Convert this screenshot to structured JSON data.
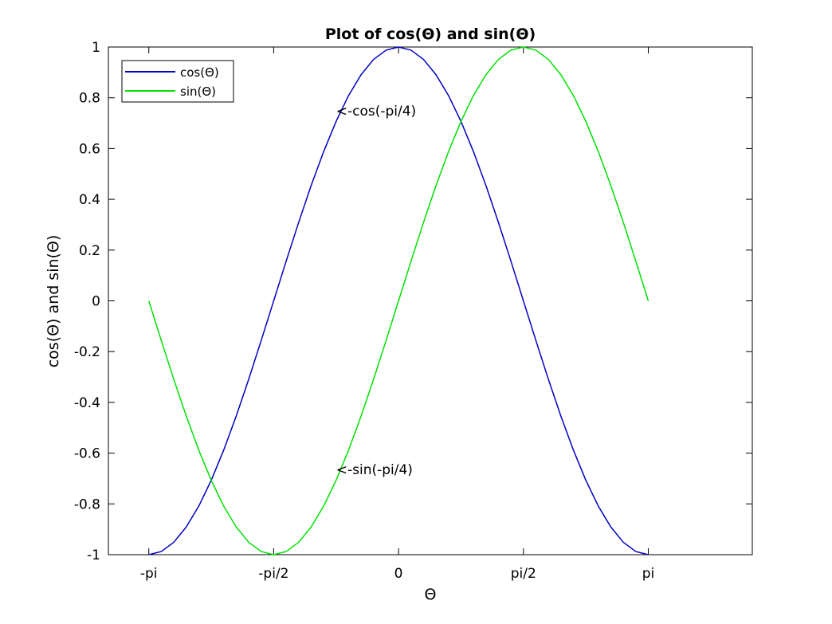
{
  "chart_data": {
    "type": "line",
    "title": "Plot of cos(Θ) and sin(Θ)",
    "xlabel": "Θ",
    "ylabel": "cos(Θ) and sin(Θ)",
    "xlim": [
      -3.65,
      4.45
    ],
    "ylim": [
      -1,
      1
    ],
    "x_ticks": [
      {
        "value": -3.14159,
        "label": "-pi"
      },
      {
        "value": -1.5708,
        "label": "-pi/2"
      },
      {
        "value": 0,
        "label": "0"
      },
      {
        "value": 1.5708,
        "label": "pi/2"
      },
      {
        "value": 3.14159,
        "label": "pi"
      }
    ],
    "y_ticks": [
      {
        "value": -1,
        "label": "-1"
      },
      {
        "value": -0.8,
        "label": "-0.8"
      },
      {
        "value": -0.6,
        "label": "-0.6"
      },
      {
        "value": -0.4,
        "label": "-0.4"
      },
      {
        "value": -0.2,
        "label": "-0.2"
      },
      {
        "value": 0,
        "label": "0"
      },
      {
        "value": 0.2,
        "label": "0.2"
      },
      {
        "value": 0.4,
        "label": "0.4"
      },
      {
        "value": 0.6,
        "label": "0.6"
      },
      {
        "value": 0.8,
        "label": "0.8"
      },
      {
        "value": 1,
        "label": "1"
      }
    ],
    "grid": false,
    "legend_position": "top-left",
    "series": [
      {
        "name": "cos(Θ)",
        "color": "#0000c0",
        "x": [
          -3.14159,
          -2.98451,
          -2.82743,
          -2.67035,
          -2.51327,
          -2.35619,
          -2.19911,
          -2.04204,
          -1.88496,
          -1.72788,
          -1.5708,
          -1.41372,
          -1.25664,
          -1.09956,
          -0.94248,
          -0.7854,
          -0.62832,
          -0.47124,
          -0.31416,
          -0.15708,
          0,
          0.15708,
          0.31416,
          0.47124,
          0.62832,
          0.7854,
          0.94248,
          1.09956,
          1.25664,
          1.41372,
          1.5708,
          1.72788,
          1.88496,
          2.04204,
          2.19911,
          2.35619,
          2.51327,
          2.67035,
          2.82743,
          2.98451,
          3.14159
        ],
        "y": [
          -1,
          -0.9877,
          -0.9511,
          -0.891,
          -0.809,
          -0.7071,
          -0.5878,
          -0.454,
          -0.309,
          -0.1564,
          0,
          0.1564,
          0.309,
          0.454,
          0.5878,
          0.7071,
          0.809,
          0.891,
          0.9511,
          0.9877,
          1,
          0.9877,
          0.9511,
          0.891,
          0.809,
          0.7071,
          0.5878,
          0.454,
          0.309,
          0.1564,
          0,
          -0.1564,
          -0.309,
          -0.454,
          -0.5878,
          -0.7071,
          -0.809,
          -0.891,
          -0.9511,
          -0.9877,
          -1
        ]
      },
      {
        "name": "sin(Θ)",
        "color": "#00e000",
        "x": [
          -3.14159,
          -2.98451,
          -2.82743,
          -2.67035,
          -2.51327,
          -2.35619,
          -2.19911,
          -2.04204,
          -1.88496,
          -1.72788,
          -1.5708,
          -1.41372,
          -1.25664,
          -1.09956,
          -0.94248,
          -0.7854,
          -0.62832,
          -0.47124,
          -0.31416,
          -0.15708,
          0,
          0.15708,
          0.31416,
          0.47124,
          0.62832,
          0.7854,
          0.94248,
          1.09956,
          1.25664,
          1.41372,
          1.5708,
          1.72788,
          1.88496,
          2.04204,
          2.19911,
          2.35619,
          2.51327,
          2.67035,
          2.82743,
          2.98451,
          3.14159
        ],
        "y": [
          0,
          -0.1564,
          -0.309,
          -0.454,
          -0.5878,
          -0.7071,
          -0.809,
          -0.891,
          -0.9511,
          -0.9877,
          -1,
          -0.9877,
          -0.9511,
          -0.891,
          -0.809,
          -0.7071,
          -0.5878,
          -0.454,
          -0.309,
          -0.1564,
          0,
          0.1564,
          0.309,
          0.454,
          0.5878,
          0.7071,
          0.809,
          0.891,
          0.9511,
          0.9877,
          1,
          0.9877,
          0.9511,
          0.891,
          0.809,
          0.7071,
          0.5878,
          0.454,
          0.309,
          0.1564,
          0
        ]
      }
    ],
    "annotations": [
      {
        "text": "<-cos(-pi/4)",
        "x": -0.7854,
        "y": 0.7482
      },
      {
        "text": "<-sin(-pi/4)",
        "x": -0.7854,
        "y": -0.6644
      }
    ]
  }
}
